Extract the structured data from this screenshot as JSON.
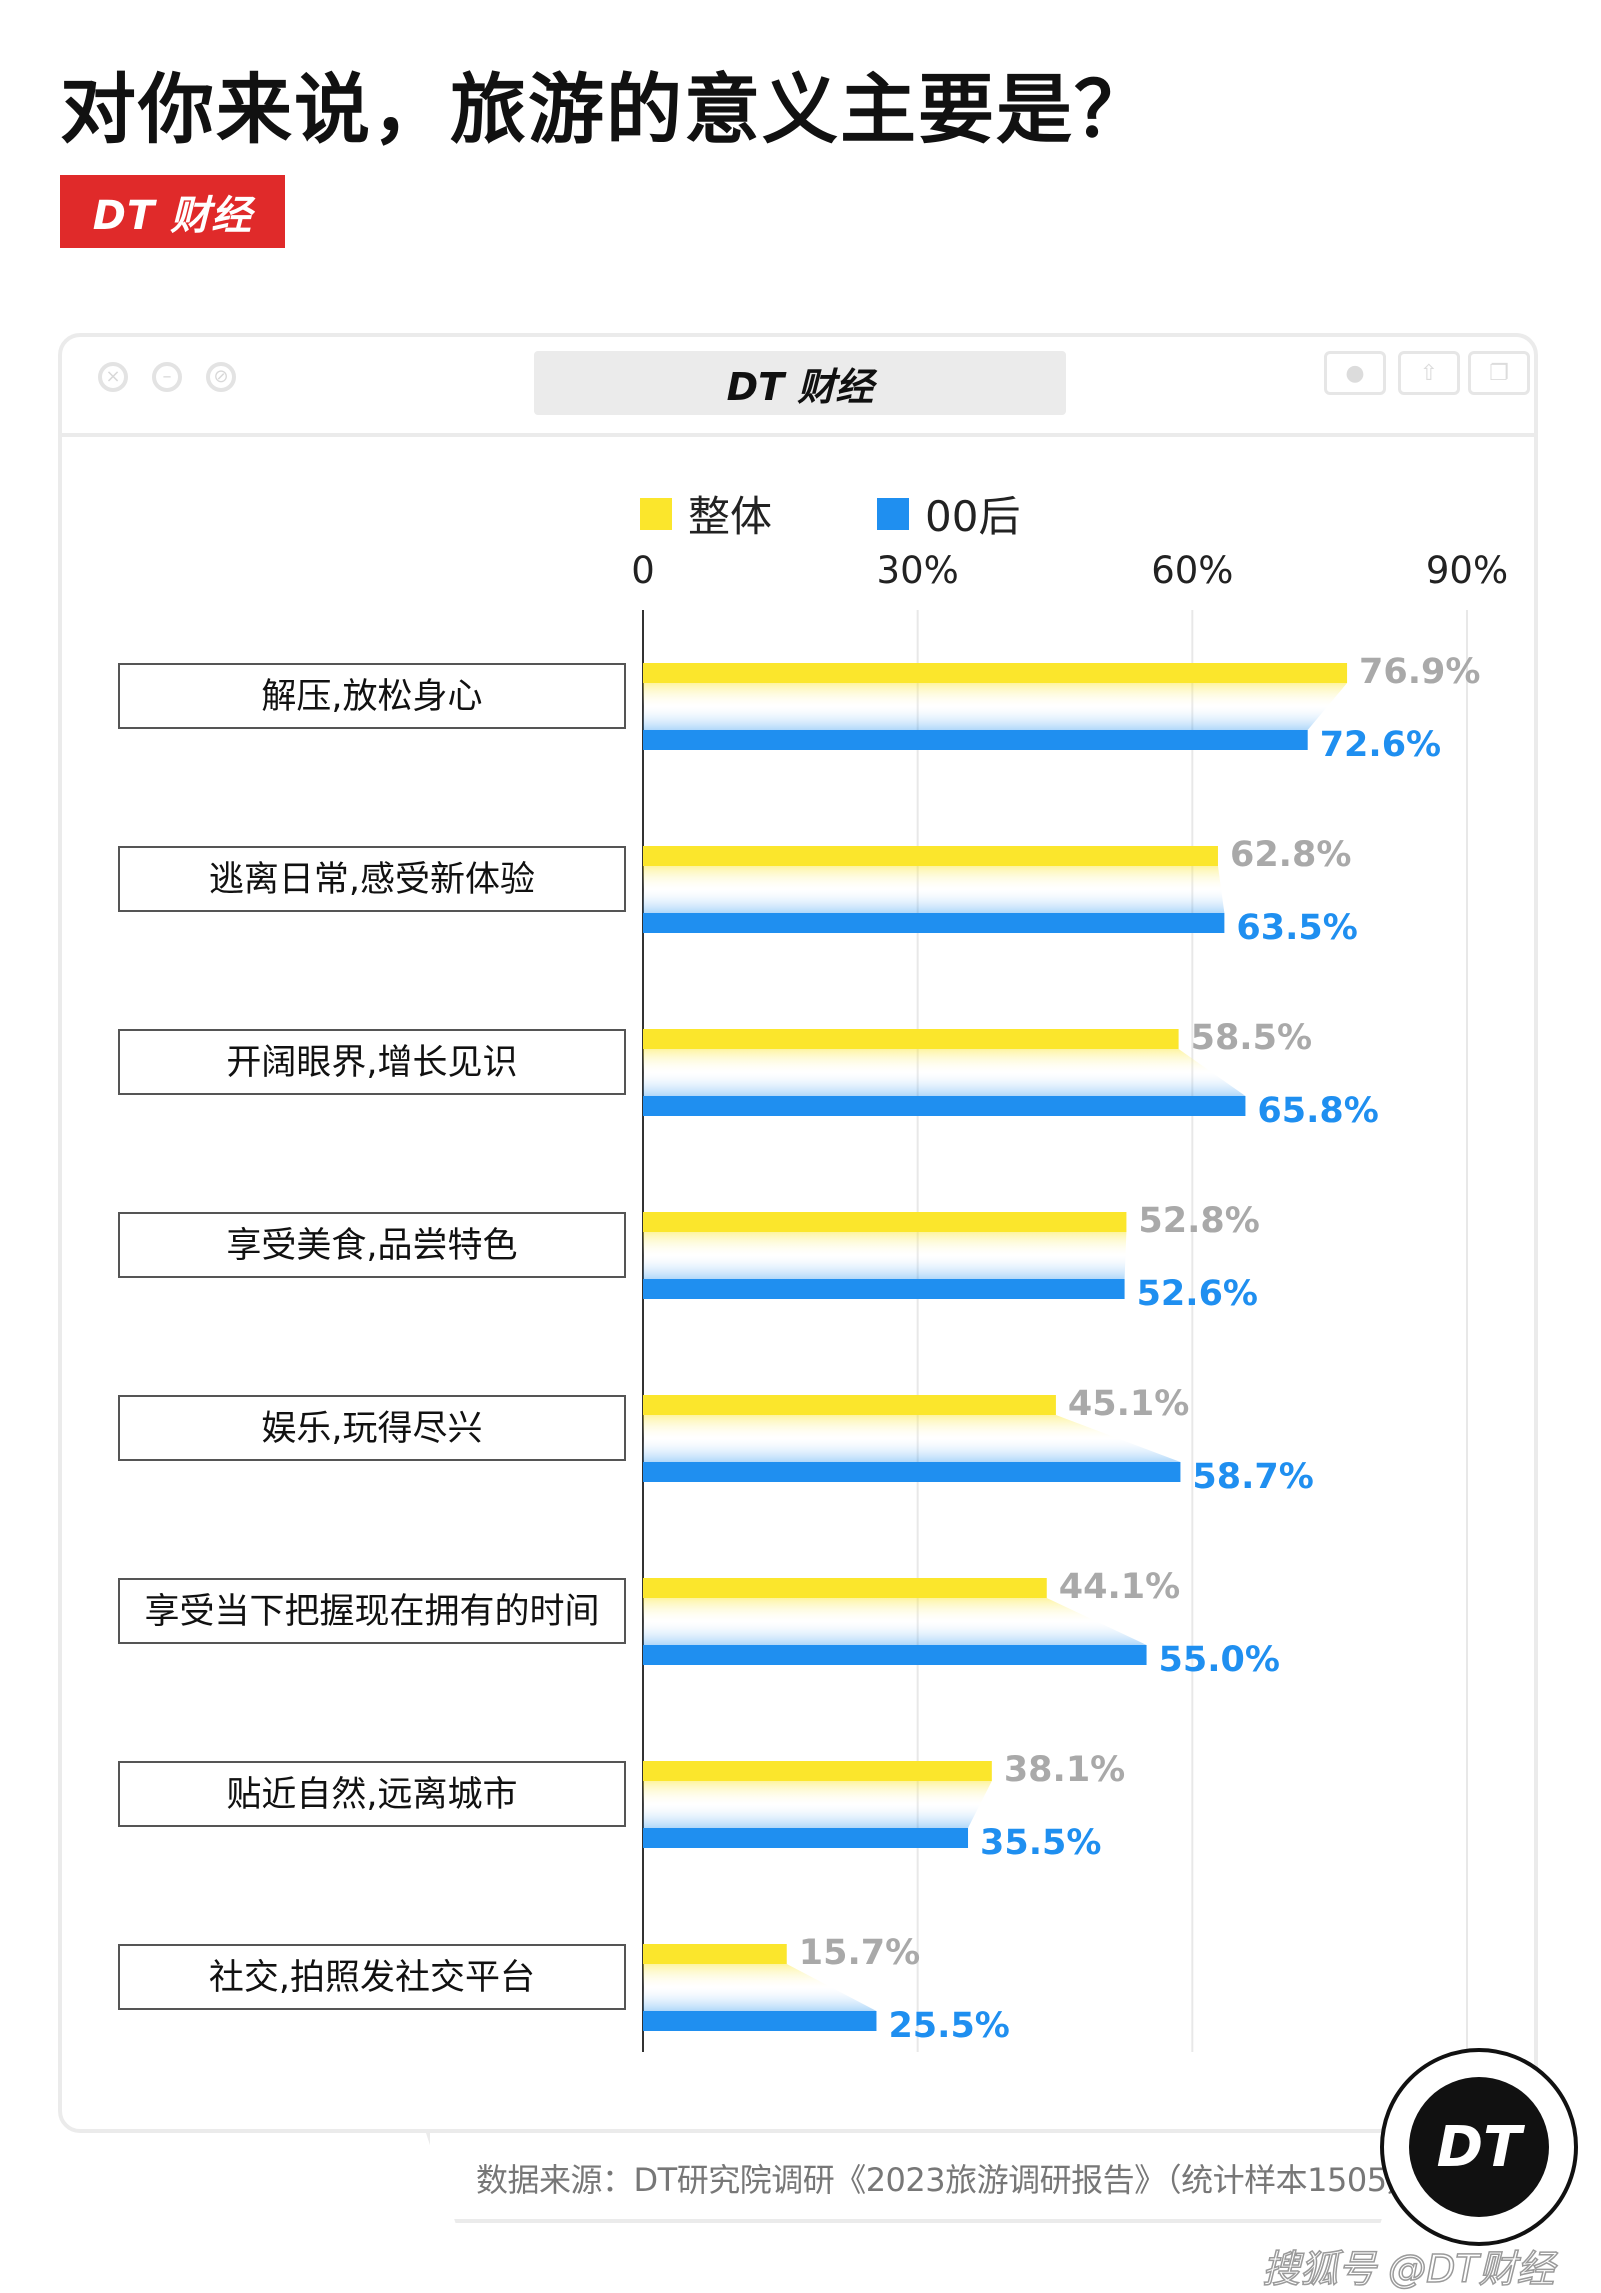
{
  "page": {
    "title": "对你来说，旅游的意义主要是？",
    "brand_tag": "DT 财经",
    "window_title": "DT 财经",
    "source": "数据来源：DT研究院调研《2023旅游调研报告》（统计样本1505）",
    "logo_text": "DT",
    "credit": "搜狐号 @DT财经"
  },
  "colors": {
    "overall": "#fbe62c",
    "gen00": "#1f8ff0",
    "overall_label": "#a9a9a9",
    "gen00_label": "#1f8ff0",
    "brand_red": "#e02a2a"
  },
  "icons": {
    "window_controls": [
      "close-icon",
      "minimize-icon",
      "block-icon"
    ],
    "window_buttons": [
      "record-icon",
      "share-icon",
      "copy-icon"
    ]
  },
  "chart_data": {
    "type": "bar",
    "orientation": "horizontal",
    "title": "对你来说，旅游的意义主要是？",
    "categories": [
      "解压,放松身心",
      "逃离日常,感受新体验",
      "开阔眼界,增长见识",
      "享受美食,品尝特色",
      "娱乐,玩得尽兴",
      "享受当下把握现在拥有的时间",
      "贴近自然,远离城市",
      "社交,拍照发社交平台"
    ],
    "series": [
      {
        "name": "整体",
        "values": [
          76.9,
          62.8,
          58.5,
          52.8,
          45.1,
          44.1,
          38.1,
          15.7
        ]
      },
      {
        "name": "00后",
        "values": [
          72.6,
          63.5,
          65.8,
          52.6,
          58.7,
          55.0,
          35.5,
          25.5
        ]
      }
    ],
    "value_suffix": "%",
    "xlim": [
      0,
      90
    ],
    "ticks": [
      "0",
      "30%",
      "60%",
      "90%"
    ],
    "tick_values": [
      0,
      30,
      60,
      90
    ],
    "grid": true,
    "legend_position": "top"
  }
}
